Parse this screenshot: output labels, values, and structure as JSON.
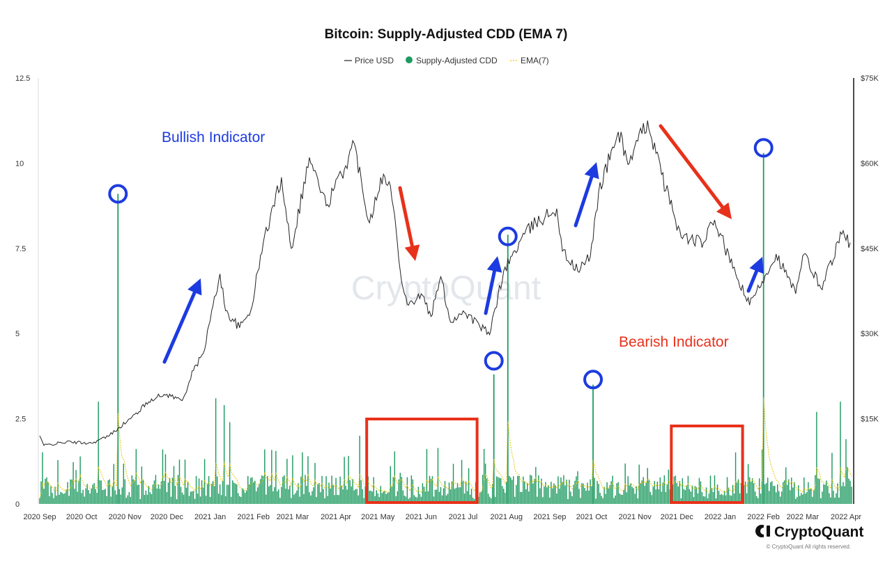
{
  "chart_data": {
    "type": "bar",
    "title": "Bitcoin: Supply-Adjusted CDD (EMA 7)",
    "legend": {
      "placement": "top-center",
      "entries": [
        {
          "name": "Price USD",
          "marker": "line",
          "color": "#222222"
        },
        {
          "name": "Supply-Adjusted CDD",
          "marker": "dot",
          "color": "#1e9a60"
        },
        {
          "name": "EMA(7)",
          "marker": "dotted-line",
          "color": "#e8c200"
        }
      ]
    },
    "x_axis": {
      "labels": [
        "2020 Sep",
        "2020 Oct",
        "2020 Nov",
        "2020 Dec",
        "2021 Jan",
        "2021 Feb",
        "2021 Mar",
        "2021 Apr",
        "2021 May",
        "2021 Jun",
        "2021 Jul",
        "2021 Aug",
        "2021 Sep",
        "2021 Oct",
        "2021 Nov",
        "2021 Dec",
        "2022 Jan",
        "2022 Feb",
        "2022 Mar",
        "2022 Apr"
      ],
      "range": [
        "2020-09-01",
        "2022-04-05"
      ]
    },
    "y_left": {
      "ticks": [
        "0",
        "2.5",
        "5",
        "7.5",
        "10",
        "12.5"
      ],
      "ylim": [
        0,
        12.5
      ],
      "series": "Supply-Adjusted CDD"
    },
    "y_right": {
      "ticks": [
        "$15K",
        "$30K",
        "$45K",
        "$60K",
        "$75K"
      ],
      "ylim": [
        0,
        75000
      ],
      "series": "Price USD"
    },
    "grid": false,
    "series": [
      {
        "name": "Price USD",
        "type": "line",
        "axis": "right",
        "color": "#222222",
        "points": [
          [
            "2020-09-01",
            12000
          ],
          [
            "2020-09-04",
            10300
          ],
          [
            "2020-09-20",
            10900
          ],
          [
            "2020-10-08",
            10700
          ],
          [
            "2020-10-20",
            11900
          ],
          [
            "2020-10-28",
            13500
          ],
          [
            "2020-11-05",
            15000
          ],
          [
            "2020-11-20",
            18500
          ],
          [
            "2020-12-01",
            19300
          ],
          [
            "2020-12-12",
            18200
          ],
          [
            "2020-12-20",
            23500
          ],
          [
            "2020-12-27",
            26500
          ],
          [
            "2021-01-08",
            40500
          ],
          [
            "2021-01-12",
            34000
          ],
          [
            "2021-01-22",
            31000
          ],
          [
            "2021-01-30",
            34000
          ],
          [
            "2021-02-08",
            46000
          ],
          [
            "2021-02-21",
            57500
          ],
          [
            "2021-02-28",
            45000
          ],
          [
            "2021-03-13",
            61000
          ],
          [
            "2021-03-25",
            52500
          ],
          [
            "2021-04-05",
            58000
          ],
          [
            "2021-04-14",
            63500
          ],
          [
            "2021-04-25",
            49500
          ],
          [
            "2021-05-03",
            57500
          ],
          [
            "2021-05-10",
            56000
          ],
          [
            "2021-05-19",
            38000
          ],
          [
            "2021-05-23",
            35000
          ],
          [
            "2021-06-01",
            37000
          ],
          [
            "2021-06-08",
            33000
          ],
          [
            "2021-06-15",
            40000
          ],
          [
            "2021-06-22",
            32000
          ],
          [
            "2021-07-01",
            34000
          ],
          [
            "2021-07-20",
            29800
          ],
          [
            "2021-07-30",
            41000
          ],
          [
            "2021-08-14",
            47500
          ],
          [
            "2021-08-22",
            49500
          ],
          [
            "2021-09-06",
            52000
          ],
          [
            "2021-09-10",
            44500
          ],
          [
            "2021-09-21",
            41000
          ],
          [
            "2021-09-30",
            43500
          ],
          [
            "2021-10-06",
            55000
          ],
          [
            "2021-10-20",
            65500
          ],
          [
            "2021-10-28",
            60000
          ],
          [
            "2021-11-10",
            67500
          ],
          [
            "2021-11-20",
            58000
          ],
          [
            "2021-12-04",
            47000
          ],
          [
            "2021-12-20",
            46000
          ],
          [
            "2021-12-28",
            50000
          ],
          [
            "2022-01-10",
            41500
          ],
          [
            "2022-01-22",
            35000
          ],
          [
            "2022-02-10",
            44000
          ],
          [
            "2022-02-24",
            37000
          ],
          [
            "2022-03-02",
            44000
          ],
          [
            "2022-03-14",
            38000
          ],
          [
            "2022-03-29",
            47500
          ],
          [
            "2022-04-04",
            46000
          ]
        ]
      },
      {
        "name": "Supply-Adjusted CDD",
        "type": "bar",
        "axis": "left",
        "color": "#1e9a60",
        "baseline_level": 0.55,
        "spikes": [
          [
            "2020-10-13",
            3.0
          ],
          [
            "2020-10-27",
            9.1
          ],
          [
            "2020-11-28",
            1.6
          ],
          [
            "2020-12-10",
            1.3
          ],
          [
            "2021-01-05",
            3.1
          ],
          [
            "2021-01-11",
            2.9
          ],
          [
            "2021-01-15",
            2.4
          ],
          [
            "2021-02-09",
            1.6
          ],
          [
            "2021-03-12",
            1.4
          ],
          [
            "2021-04-18",
            2.0
          ],
          [
            "2021-07-23",
            3.8
          ],
          [
            "2021-08-02",
            7.9
          ],
          [
            "2021-10-02",
            3.5
          ],
          [
            "2022-02-01",
            10.3
          ],
          [
            "2022-03-11",
            2.7
          ],
          [
            "2022-03-28",
            3.0
          ],
          [
            "2022-04-01",
            1.9
          ]
        ]
      },
      {
        "name": "EMA(7)",
        "type": "line",
        "axis": "left",
        "color": "#e8c200",
        "style": "dotted"
      }
    ],
    "annotations": [
      {
        "type": "text",
        "text": "Bullish Indicator",
        "color": "#1c3be0"
      },
      {
        "type": "text",
        "text": "Bearish Indicator",
        "color": "#e8311a"
      },
      {
        "type": "circle",
        "date": "2020-10-27",
        "value": 9.1,
        "color": "#1c3be0"
      },
      {
        "type": "circle",
        "date": "2021-07-23",
        "value": 4.2,
        "color": "#1c3be0"
      },
      {
        "type": "circle",
        "date": "2021-08-02",
        "value": 7.85,
        "color": "#1c3be0"
      },
      {
        "type": "circle",
        "date": "2021-10-02",
        "value": 3.65,
        "color": "#1c3be0"
      },
      {
        "type": "circle",
        "date": "2022-02-01",
        "value": 10.45,
        "color": "#1c3be0"
      },
      {
        "type": "arrow",
        "direction": "up",
        "color": "#1c3be0"
      },
      {
        "type": "arrow",
        "direction": "down",
        "color": "#e8311a"
      },
      {
        "type": "box",
        "from": "2021-04-23",
        "to": "2021-07-11",
        "color": "#e8311a"
      },
      {
        "type": "box",
        "from": "2021-11-27",
        "to": "2022-01-17",
        "color": "#e8311a"
      }
    ]
  },
  "watermark": "CryptoQuant",
  "branding": {
    "name": "CryptoQuant",
    "copyright": "© CryptoQuant All rights reserved."
  }
}
